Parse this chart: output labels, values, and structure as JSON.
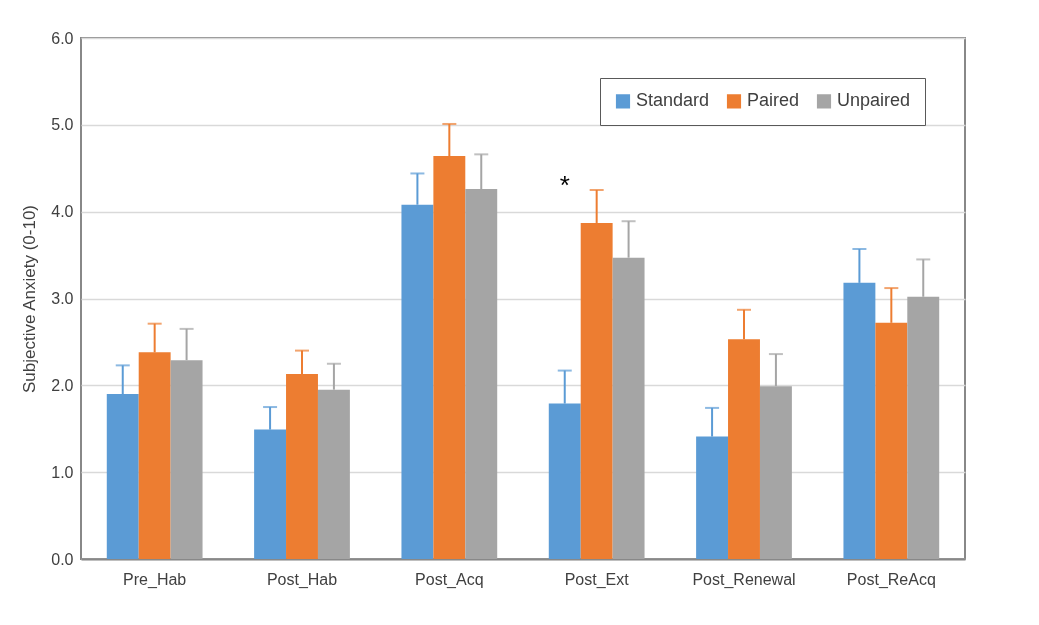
{
  "chart_data": {
    "type": "bar",
    "ylabel": "Subjective Anxiety (0-10)",
    "categories": [
      "Pre_Hab",
      "Post_Hab",
      "Post_Acq",
      "Post_Ext",
      "Post_Renewal",
      "Post_ReAcq"
    ],
    "series": [
      {
        "name": "Standard",
        "color": "#5b9bd5",
        "values": [
          1.9,
          1.49,
          4.08,
          1.79,
          1.41,
          3.18
        ],
        "errors": [
          [
            1.9,
            2.23
          ],
          [
            1.49,
            1.75
          ],
          [
            4.08,
            4.44
          ],
          [
            1.79,
            2.17
          ],
          [
            1.41,
            1.74
          ],
          [
            3.18,
            3.57
          ]
        ]
      },
      {
        "name": "Paired",
        "color": "#ed7d31",
        "values": [
          2.38,
          2.13,
          4.64,
          3.87,
          2.53,
          2.72
        ],
        "errors": [
          [
            2.38,
            2.71
          ],
          [
            2.13,
            2.4
          ],
          [
            4.64,
            5.01
          ],
          [
            3.87,
            4.25
          ],
          [
            2.53,
            2.87
          ],
          [
            2.72,
            3.12
          ]
        ]
      },
      {
        "name": "Unpaired",
        "color": "#a5a5a5",
        "values": [
          2.29,
          1.95,
          4.26,
          3.47,
          1.99,
          3.02
        ],
        "errors": [
          [
            2.29,
            2.65
          ],
          [
            1.95,
            2.25
          ],
          [
            4.26,
            4.66
          ],
          [
            3.47,
            3.89
          ],
          [
            1.99,
            2.36
          ],
          [
            3.02,
            3.45
          ]
        ]
      }
    ],
    "ylim": [
      0,
      6
    ],
    "yticks": [
      {
        "value": 0,
        "label": "0.0"
      },
      {
        "value": 1,
        "label": "1.0"
      },
      {
        "value": 2,
        "label": "2.0"
      },
      {
        "value": 3,
        "label": "3.0"
      },
      {
        "value": 4,
        "label": "4.0"
      },
      {
        "value": 5,
        "label": "5.0"
      },
      {
        "value": 6,
        "label": "6.0"
      }
    ],
    "grid": "y",
    "legend": "top right",
    "annotations": [
      {
        "text": "*",
        "x": "Post_Ext",
        "y": 4.3
      }
    ]
  }
}
